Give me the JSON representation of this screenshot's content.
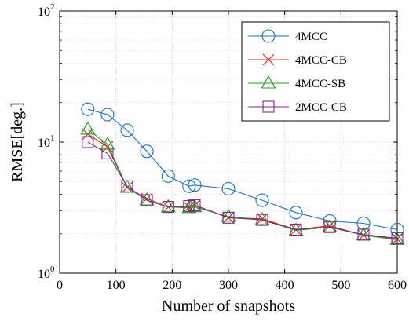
{
  "chart_data": {
    "type": "line",
    "title": "",
    "xlabel": "Number of snapshots",
    "ylabel": "RMSE[deg.]",
    "xlim": [
      0,
      600
    ],
    "ylim": [
      1,
      100
    ],
    "yscale": "log",
    "grid": true,
    "legend_position": "top-right",
    "x_ticks": [
      0,
      100,
      200,
      300,
      400,
      500,
      600
    ],
    "y_ticks": [
      {
        "base": "10",
        "exp": "0",
        "value": 1
      },
      {
        "base": "10",
        "exp": "1",
        "value": 10
      },
      {
        "base": "10",
        "exp": "2",
        "value": 100
      }
    ],
    "series": [
      {
        "name": "4MCC",
        "color": "#1f6fc0",
        "marker": "circle",
        "x": [
          50,
          85,
          120,
          155,
          193,
          230,
          240,
          300,
          360,
          420,
          480,
          540,
          600
        ],
        "y": [
          17.8,
          16.2,
          12.3,
          8.5,
          5.5,
          4.6,
          4.7,
          4.4,
          3.6,
          2.9,
          2.5,
          2.4,
          2.15
        ]
      },
      {
        "name": "4MCC-CB",
        "color": "#e8201a",
        "marker": "x",
        "x": [
          50,
          85,
          120,
          155,
          193,
          230,
          240,
          300,
          360,
          420,
          480,
          540,
          600
        ],
        "y": [
          11.5,
          9.2,
          4.5,
          3.7,
          3.2,
          3.2,
          3.3,
          2.65,
          2.6,
          2.15,
          2.3,
          1.95,
          1.82
        ]
      },
      {
        "name": "4MCC-SB",
        "color": "#1f9a1f",
        "marker": "triangle",
        "x": [
          50,
          85,
          120,
          155,
          193,
          230,
          240,
          300,
          360,
          420,
          480,
          540,
          600
        ],
        "y": [
          12.5,
          9.6,
          4.5,
          3.6,
          3.2,
          3.15,
          3.2,
          2.7,
          2.55,
          2.12,
          2.25,
          1.95,
          1.8
        ]
      },
      {
        "name": "2MCC-CB",
        "color": "#7d2a8f",
        "marker": "square",
        "x": [
          50,
          85,
          120,
          155,
          193,
          230,
          240,
          300,
          360,
          420,
          480,
          540,
          600
        ],
        "y": [
          10.0,
          8.2,
          4.6,
          3.6,
          3.2,
          3.25,
          3.3,
          2.65,
          2.55,
          2.15,
          2.25,
          1.97,
          1.85
        ]
      }
    ]
  }
}
